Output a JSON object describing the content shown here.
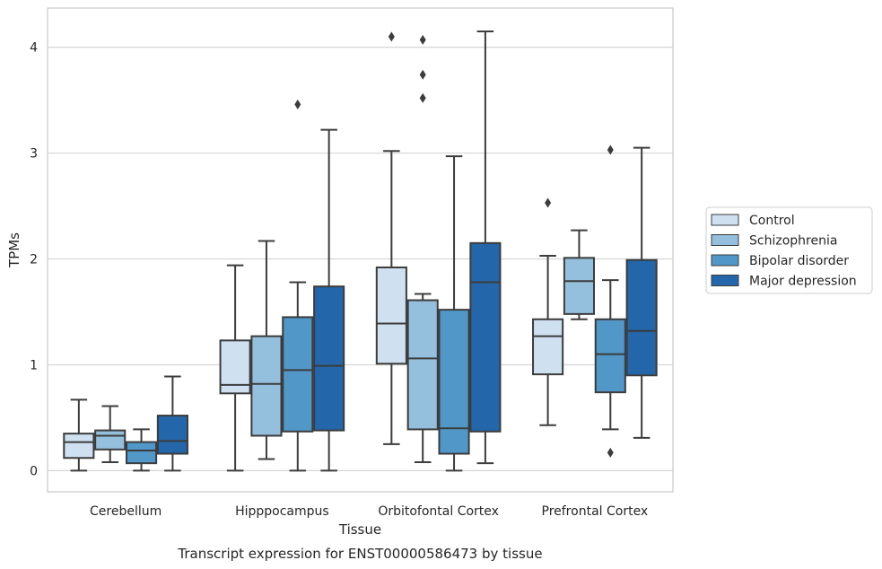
{
  "chart_data": {
    "type": "box",
    "title": "Transcript expression for ENST00000586473 by tissue",
    "xlabel": "Tissue",
    "ylabel": "TPMs",
    "categories": [
      "Cerebellum",
      "Hipppocampus",
      "Orbitofontal Cortex",
      "Prefrontal Cortex"
    ],
    "ylim": [
      -0.2,
      4.37
    ],
    "yticks": [
      0,
      1,
      2,
      3,
      4
    ],
    "grid": "horizontal",
    "legend_position": "right",
    "series": [
      {
        "name": "Control",
        "color": "#cfe0f1",
        "boxes": [
          {
            "whislo": 0.0,
            "q1": 0.12,
            "med": 0.27,
            "q3": 0.35,
            "whishi": 0.67,
            "fliers": []
          },
          {
            "whislo": 0.0,
            "q1": 0.73,
            "med": 0.81,
            "q3": 1.23,
            "whishi": 1.94,
            "fliers": []
          },
          {
            "whislo": 0.25,
            "q1": 1.01,
            "med": 1.39,
            "q3": 1.92,
            "whishi": 3.02,
            "fliers": [
              4.1
            ]
          },
          {
            "whislo": 0.43,
            "q1": 0.91,
            "med": 1.27,
            "q3": 1.43,
            "whishi": 2.03,
            "fliers": [
              2.53
            ]
          }
        ]
      },
      {
        "name": "Schizophrenia",
        "color": "#94c0dd",
        "boxes": [
          {
            "whislo": 0.08,
            "q1": 0.2,
            "med": 0.33,
            "q3": 0.38,
            "whishi": 0.61,
            "fliers": []
          },
          {
            "whislo": 0.11,
            "q1": 0.33,
            "med": 0.82,
            "q3": 1.27,
            "whishi": 2.17,
            "fliers": []
          },
          {
            "whislo": 0.08,
            "q1": 0.39,
            "med": 1.06,
            "q3": 1.61,
            "whishi": 1.67,
            "fliers": [
              3.52,
              3.74,
              4.07
            ]
          },
          {
            "whislo": 1.43,
            "q1": 1.48,
            "med": 1.79,
            "q3": 2.01,
            "whishi": 2.27,
            "fliers": []
          }
        ]
      },
      {
        "name": "Bipolar disorder",
        "color": "#5197c8",
        "boxes": [
          {
            "whislo": 0.0,
            "q1": 0.07,
            "med": 0.19,
            "q3": 0.27,
            "whishi": 0.39,
            "fliers": []
          },
          {
            "whislo": 0.0,
            "q1": 0.37,
            "med": 0.95,
            "q3": 1.45,
            "whishi": 1.78,
            "fliers": [
              3.46
            ]
          },
          {
            "whislo": 0.0,
            "q1": 0.16,
            "med": 0.4,
            "q3": 1.52,
            "whishi": 2.97,
            "fliers": []
          },
          {
            "whislo": 0.39,
            "q1": 0.74,
            "med": 1.1,
            "q3": 1.43,
            "whishi": 1.8,
            "fliers": [
              0.17,
              3.03
            ]
          }
        ]
      },
      {
        "name": "Major depression",
        "color": "#2366a9",
        "boxes": [
          {
            "whislo": 0.0,
            "q1": 0.16,
            "med": 0.28,
            "q3": 0.52,
            "whishi": 0.89,
            "fliers": []
          },
          {
            "whislo": 0.0,
            "q1": 0.38,
            "med": 0.99,
            "q3": 1.74,
            "whishi": 3.22,
            "fliers": []
          },
          {
            "whislo": 0.07,
            "q1": 0.37,
            "med": 1.78,
            "q3": 2.15,
            "whishi": 4.15,
            "fliers": []
          },
          {
            "whislo": 0.31,
            "q1": 0.9,
            "med": 1.32,
            "q3": 1.99,
            "whishi": 3.05,
            "fliers": []
          }
        ]
      }
    ]
  },
  "colors": {
    "grid": "#d6d6d6",
    "frame": "#cccccc",
    "box_edge": "#3c3c3c"
  }
}
